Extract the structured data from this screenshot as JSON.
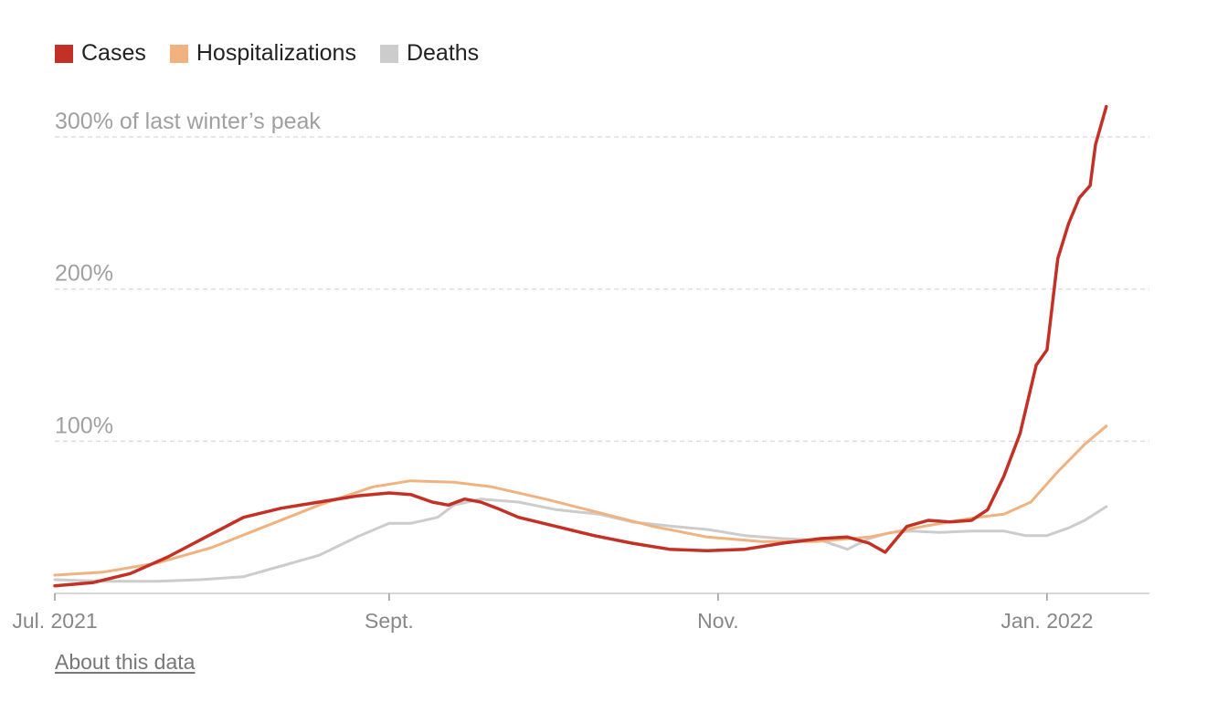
{
  "legend": [
    {
      "label": "Cases",
      "color": "#c33126"
    },
    {
      "label": "Hospitalizations",
      "color": "#f0b27f"
    },
    {
      "label": "Deaths",
      "color": "#cccccc"
    }
  ],
  "about_link": "About this data",
  "chart_data": {
    "type": "line",
    "ylabel": "",
    "xlabel": "",
    "y_unit": "percent of last winter's peak",
    "ylim": [
      0,
      300
    ],
    "y_ticks": [
      {
        "value": 100,
        "label": "100%"
      },
      {
        "value": 200,
        "label": "200%"
      },
      {
        "value": 300,
        "label": "300% of last winter’s peak"
      }
    ],
    "x_range": [
      "2021-07-01",
      "2022-01-20"
    ],
    "x_ticks": [
      {
        "date": "2021-07-01",
        "label": "Jul. 2021"
      },
      {
        "date": "2021-09-01",
        "label": "Sept."
      },
      {
        "date": "2021-11-01",
        "label": "Nov."
      },
      {
        "date": "2022-01-01",
        "label": "Jan. 2022"
      }
    ],
    "grid": "horizontal dashed",
    "series": [
      {
        "name": "Cases",
        "color": "#c33126",
        "x": [
          "2021-07-01",
          "2021-07-08",
          "2021-07-15",
          "2021-07-22",
          "2021-07-29",
          "2021-08-05",
          "2021-08-12",
          "2021-08-19",
          "2021-08-26",
          "2021-09-01",
          "2021-09-05",
          "2021-09-09",
          "2021-09-12",
          "2021-09-15",
          "2021-09-18",
          "2021-09-21",
          "2021-09-25",
          "2021-10-02",
          "2021-10-09",
          "2021-10-16",
          "2021-10-23",
          "2021-10-30",
          "2021-11-06",
          "2021-11-13",
          "2021-11-20",
          "2021-11-25",
          "2021-11-29",
          "2021-12-02",
          "2021-12-06",
          "2021-12-10",
          "2021-12-14",
          "2021-12-18",
          "2021-12-21",
          "2021-12-24",
          "2021-12-27",
          "2021-12-30",
          "2022-01-01",
          "2022-01-03",
          "2022-01-05",
          "2022-01-07",
          "2022-01-09",
          "2022-01-10",
          "2022-01-12"
        ],
        "values": [
          5,
          7,
          13,
          24,
          37,
          50,
          56,
          60,
          64,
          66,
          65,
          60,
          58,
          62,
          60,
          56,
          50,
          44,
          38,
          33,
          29,
          28,
          29,
          33,
          36,
          37,
          33,
          27,
          44,
          48,
          47,
          48,
          55,
          77,
          105,
          150,
          160,
          220,
          243,
          260,
          268,
          295,
          320
        ]
      },
      {
        "name": "Hospitalizations",
        "color": "#f0b27f",
        "x": [
          "2021-07-01",
          "2021-07-10",
          "2021-07-20",
          "2021-07-30",
          "2021-08-09",
          "2021-08-19",
          "2021-08-29",
          "2021-09-05",
          "2021-09-13",
          "2021-09-20",
          "2021-09-30",
          "2021-10-10",
          "2021-10-20",
          "2021-10-30",
          "2021-11-09",
          "2021-11-19",
          "2021-11-29",
          "2021-12-09",
          "2021-12-19",
          "2021-12-24",
          "2021-12-29",
          "2022-01-03",
          "2022-01-08",
          "2022-01-12"
        ],
        "values": [
          12,
          14,
          20,
          30,
          44,
          58,
          70,
          74,
          73,
          70,
          62,
          53,
          44,
          37,
          34,
          34,
          37,
          44,
          50,
          52,
          60,
          80,
          98,
          110
        ]
      },
      {
        "name": "Deaths",
        "color": "#cccccc",
        "x": [
          "2021-07-01",
          "2021-07-10",
          "2021-07-20",
          "2021-07-28",
          "2021-08-05",
          "2021-08-12",
          "2021-08-19",
          "2021-08-26",
          "2021-09-01",
          "2021-09-05",
          "2021-09-10",
          "2021-09-13",
          "2021-09-18",
          "2021-09-25",
          "2021-10-02",
          "2021-10-10",
          "2021-10-16",
          "2021-10-24",
          "2021-10-30",
          "2021-11-06",
          "2021-11-13",
          "2021-11-20",
          "2021-11-25",
          "2021-11-29",
          "2021-12-03",
          "2021-12-07",
          "2021-12-12",
          "2021-12-18",
          "2021-12-24",
          "2021-12-28",
          "2022-01-01",
          "2022-01-05",
          "2022-01-08",
          "2022-01-12"
        ],
        "values": [
          9,
          8,
          8,
          9,
          11,
          18,
          25,
          37,
          46,
          46,
          50,
          58,
          62,
          60,
          55,
          52,
          47,
          44,
          42,
          38,
          36,
          35,
          29,
          36,
          40,
          41,
          40,
          41,
          41,
          38,
          38,
          43,
          48,
          57
        ]
      }
    ]
  }
}
